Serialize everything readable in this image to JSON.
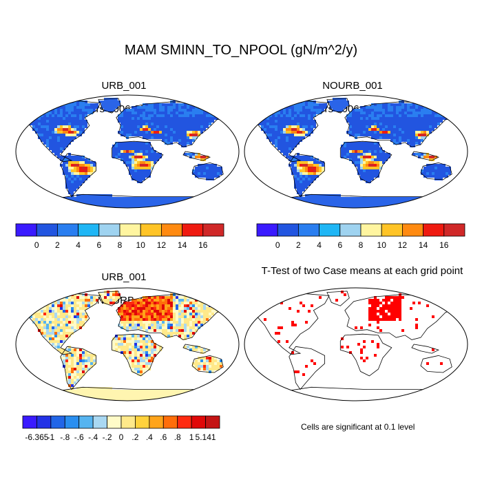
{
  "figure": {
    "title": "MAM SMINN_TO_NPOOL (gN/m^2/y)"
  },
  "panels": [
    {
      "id": "urb",
      "title": "URB_001",
      "subtitle": "(yrs 2006-2014)"
    },
    {
      "id": "nourb",
      "title": "NOURB_001",
      "subtitle": "(yrs 2006-2014)"
    },
    {
      "id": "diff",
      "title": "URB_001",
      "subtitle": "- NOURB_001"
    },
    {
      "id": "ttest",
      "title": "T-Test of two Case means at each grid point",
      "subtitle": ""
    }
  ],
  "colorbar_top": {
    "colors": [
      "#3a1aff",
      "#2255e0",
      "#2a7ef0",
      "#1fb6f5",
      "#9fd3f0",
      "#fff5a0",
      "#ffc426",
      "#ff8a10",
      "#ef1a10",
      "#d02828"
    ],
    "labels": [
      "0",
      "2",
      "4",
      "6",
      "8",
      "10",
      "12",
      "14",
      "16"
    ]
  },
  "colorbar_diff": {
    "colors": [
      "#3a1aff",
      "#2232e6",
      "#2266e8",
      "#2a8ff0",
      "#56b4f0",
      "#a9d8f2",
      "#fffbc8",
      "#ffe98a",
      "#ffd23c",
      "#ffa41a",
      "#ff6e0a",
      "#ff2a10",
      "#e00808",
      "#c41414"
    ],
    "labels": [
      "-6.365",
      "-1",
      "-.8",
      "-.6",
      "-.4",
      "-.2",
      "0",
      ".2",
      ".4",
      ".6",
      ".8",
      "1",
      "5.141"
    ]
  },
  "significance_note": "Cells are significant at 0.1 level",
  "map_colors": {
    "ocean": "#ffffff",
    "land_low": "#2a64e8",
    "land_high": "#e21a10",
    "diff_neutral": "#fff5b0",
    "significant": "#ff0000"
  }
}
